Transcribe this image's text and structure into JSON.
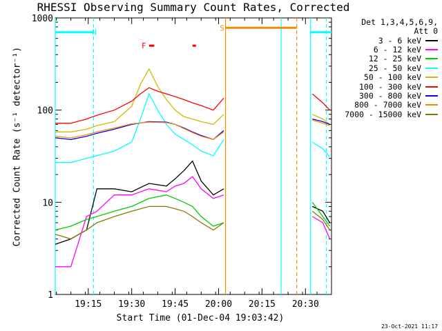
{
  "chart_data": {
    "type": "line",
    "title": "RHESSI Observing Summary Count Rates, Corrected",
    "xlabel": "Start Time (01-Dec-04 19:03:42)",
    "ylabel": "Corrected Count Rate (s⁻¹ detector⁻¹)",
    "yscale": "log",
    "ylim": [
      1,
      1000
    ],
    "xlim_minutes": [
      19.06,
      20.65
    ],
    "xticks": [
      {
        "pos": 19.25,
        "label": "19:15"
      },
      {
        "pos": 19.5,
        "label": "19:30"
      },
      {
        "pos": 19.75,
        "label": "19:45"
      },
      {
        "pos": 20.0,
        "label": "20:00"
      },
      {
        "pos": 20.25,
        "label": "20:15"
      },
      {
        "pos": 20.5,
        "label": "20:30"
      }
    ],
    "yticks": [
      {
        "value": 1,
        "label": "1"
      },
      {
        "value": 10,
        "label": "10"
      },
      {
        "value": 100,
        "label": "100"
      },
      {
        "value": 1000,
        "label": "1000"
      }
    ],
    "legend_header": [
      "Det 1,3,4,5,6,9,",
      "Att 0"
    ],
    "data_gaps": [
      [
        20.03,
        20.53
      ]
    ],
    "series": [
      {
        "name": "3 - 6 keV",
        "color": "#000000",
        "x": [
          19.06,
          19.15,
          19.24,
          19.3,
          19.4,
          19.5,
          19.6,
          19.7,
          19.75,
          19.8,
          19.85,
          19.9,
          19.97,
          20.03,
          20.54,
          20.6,
          20.64
        ],
        "y": [
          3.5,
          4,
          5,
          14,
          14,
          13,
          16,
          15,
          18,
          22,
          28,
          17,
          12,
          14,
          9,
          8,
          6
        ]
      },
      {
        "name": "6 - 12 keV",
        "color": "#ff00ff",
        "x": [
          19.06,
          19.15,
          19.24,
          19.3,
          19.4,
          19.5,
          19.6,
          19.7,
          19.75,
          19.8,
          19.85,
          19.9,
          19.97,
          20.03,
          20.54,
          20.6,
          20.64
        ],
        "y": [
          2,
          2,
          7,
          8,
          12,
          12,
          14,
          13,
          15,
          16,
          19,
          14,
          11,
          12,
          7,
          6,
          4
        ]
      },
      {
        "name": "12 - 25 keV",
        "color": "#00cc00",
        "x": [
          19.06,
          19.15,
          19.24,
          19.3,
          19.4,
          19.5,
          19.6,
          19.7,
          19.75,
          19.8,
          19.85,
          19.9,
          19.97,
          20.03,
          20.54,
          20.6,
          20.64
        ],
        "y": [
          5,
          5.5,
          6.5,
          7,
          8,
          9,
          11,
          12,
          11,
          10,
          9,
          7,
          5.5,
          6,
          10,
          7,
          5.5
        ]
      },
      {
        "name": "25 - 50 keV",
        "color": "#00ffff",
        "x": [
          19.06,
          19.15,
          19.24,
          19.3,
          19.4,
          19.5,
          19.55,
          19.6,
          19.65,
          19.7,
          19.75,
          19.8,
          19.85,
          19.9,
          19.97,
          20.03,
          20.54,
          20.6,
          20.64
        ],
        "y": [
          27,
          27,
          30,
          32,
          36,
          45,
          80,
          150,
          100,
          70,
          55,
          48,
          42,
          36,
          32,
          48,
          45,
          38,
          31
        ]
      },
      {
        "name": "50 - 100 keV",
        "color": "#ccbb00",
        "x": [
          19.06,
          19.15,
          19.24,
          19.3,
          19.4,
          19.5,
          19.55,
          19.6,
          19.65,
          19.7,
          19.75,
          19.8,
          19.85,
          19.9,
          19.97,
          20.03,
          20.54,
          20.6,
          20.64
        ],
        "y": [
          58,
          58,
          62,
          68,
          75,
          110,
          190,
          280,
          180,
          130,
          100,
          85,
          80,
          75,
          70,
          90,
          90,
          80,
          70
        ]
      },
      {
        "name": "100 - 300 keV",
        "color": "#ff0000",
        "x": [
          19.06,
          19.15,
          19.24,
          19.3,
          19.4,
          19.5,
          19.55,
          19.6,
          19.65,
          19.7,
          19.75,
          19.8,
          19.85,
          19.9,
          19.97,
          20.03,
          20.54,
          20.6,
          20.64
        ],
        "y": [
          72,
          72,
          80,
          88,
          100,
          125,
          150,
          175,
          160,
          150,
          140,
          130,
          120,
          112,
          100,
          135,
          150,
          120,
          100
        ]
      },
      {
        "name": "300 - 800 keV",
        "color": "#0000ff",
        "x": [
          19.06,
          19.15,
          19.24,
          19.3,
          19.4,
          19.5,
          19.6,
          19.7,
          19.75,
          19.8,
          19.85,
          19.9,
          19.97,
          20.03,
          20.54,
          20.6,
          20.64
        ],
        "y": [
          50,
          48,
          52,
          56,
          62,
          70,
          75,
          74,
          70,
          64,
          58,
          53,
          48,
          60,
          80,
          75,
          70
        ]
      },
      {
        "name": "800 - 7000 keV",
        "color": "#ff8800",
        "x": [
          19.06,
          19.15,
          19.24,
          19.3,
          19.4,
          19.5,
          19.6,
          19.7,
          19.75,
          19.8,
          19.85,
          19.9,
          19.97,
          20.03,
          20.54,
          20.6,
          20.64
        ],
        "y": [
          52,
          50,
          54,
          58,
          64,
          71,
          74,
          73,
          70,
          63,
          57,
          52,
          48,
          58,
          78,
          72,
          68
        ]
      },
      {
        "name": "7000 - 15000 keV",
        "color": "#887700",
        "x": [
          19.06,
          19.15,
          19.24,
          19.3,
          19.4,
          19.5,
          19.6,
          19.7,
          19.75,
          19.8,
          19.85,
          19.9,
          19.97,
          20.03,
          20.54,
          20.6,
          20.64
        ],
        "y": [
          4.5,
          4,
          5,
          6,
          7,
          8,
          9,
          9,
          8.5,
          8,
          7,
          6,
          5,
          6,
          8,
          6.5,
          5
        ]
      }
    ],
    "flag_bars": [
      {
        "label": "N",
        "color": "#00ffff",
        "y": 700,
        "segments": [
          [
            19.06,
            19.28
          ],
          [
            20.53,
            20.65
          ]
        ],
        "text_at": 19.285
      },
      {
        "label": "F",
        "color": "#ff0000",
        "y": 500,
        "segments": [
          [
            19.6,
            19.63
          ],
          [
            19.85,
            19.87
          ]
        ],
        "text_at": 19.57
      },
      {
        "label": "S",
        "color": "#ff8800",
        "y": 780,
        "segments": [
          [
            20.04,
            20.45
          ]
        ],
        "text_at": 20.02
      }
    ],
    "vlines": [
      {
        "x": 19.06,
        "color": "#00ffff",
        "style": "solid"
      },
      {
        "x": 19.28,
        "color": "#00ffff",
        "style": "dashed"
      },
      {
        "x": 20.04,
        "color": "#ff8800",
        "style": "solid"
      },
      {
        "x": 20.36,
        "color": "#00ffff",
        "style": "solid"
      },
      {
        "x": 20.45,
        "color": "#ff8800",
        "style": "dashed"
      },
      {
        "x": 20.53,
        "color": "#00ffff",
        "style": "solid"
      },
      {
        "x": 20.62,
        "color": "#00ffff",
        "style": "dashed"
      }
    ]
  },
  "footer": {
    "stamp": "23-Oct-2021 11:17"
  }
}
